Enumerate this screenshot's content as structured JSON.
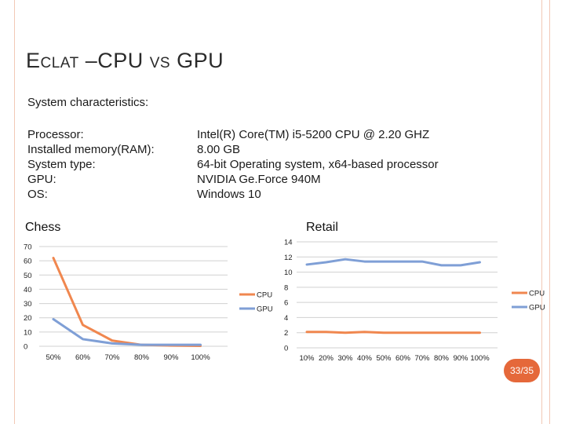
{
  "slide": {
    "title_e": "E",
    "title_clat": "CLAT",
    "title_dash": " –CPU ",
    "title_vs": "VS",
    "title_gpu": " GPU",
    "section_label": "System characteristics:",
    "spec_labels": [
      "Processor:",
      "Installed memory(RAM):",
      "System type:",
      "GPU:",
      "OS:"
    ],
    "spec_values": [
      "Intel(R) Core(TM) i5-5200 CPU @ 2.20 GHZ",
      "8.00 GB",
      "64-bit Operating system, x64-based processor",
      "NVIDIA Ge.Force 940M",
      "Windows 10"
    ],
    "page_number": "33/35"
  },
  "colors": {
    "cpu": "#f0874f",
    "gpu": "#7f9fd6",
    "accent": "#e5683a",
    "frame": "#f2c8b6"
  },
  "chart_data": [
    {
      "type": "line",
      "title": "Chess",
      "categories": [
        "50%",
        "60%",
        "70%",
        "80%",
        "90%",
        "100%"
      ],
      "ylim": [
        0,
        70
      ],
      "yticks": [
        0,
        10,
        20,
        30,
        40,
        50,
        60,
        70
      ],
      "series": [
        {
          "name": "CPU",
          "values": [
            62,
            15,
            4,
            1,
            0.5,
            0.3
          ]
        },
        {
          "name": "GPU",
          "values": [
            19,
            5,
            2,
            1,
            1,
            1
          ]
        }
      ],
      "legend": "right"
    },
    {
      "type": "line",
      "title": "Retail",
      "categories": [
        "10%",
        "20%",
        "30%",
        "40%",
        "50%",
        "60%",
        "70%",
        "80%",
        "90%",
        "100%"
      ],
      "ylim": [
        0,
        14
      ],
      "yticks": [
        0,
        2,
        4,
        6,
        8,
        10,
        12,
        14
      ],
      "series": [
        {
          "name": "CPU",
          "values": [
            2.1,
            2.1,
            2.0,
            2.1,
            2.0,
            2.0,
            2.0,
            2.0,
            2.0,
            2.0
          ]
        },
        {
          "name": "GPU",
          "values": [
            11.0,
            11.3,
            11.7,
            11.4,
            11.4,
            11.4,
            11.4,
            10.9,
            10.9,
            11.3
          ]
        }
      ],
      "legend": "right"
    }
  ]
}
